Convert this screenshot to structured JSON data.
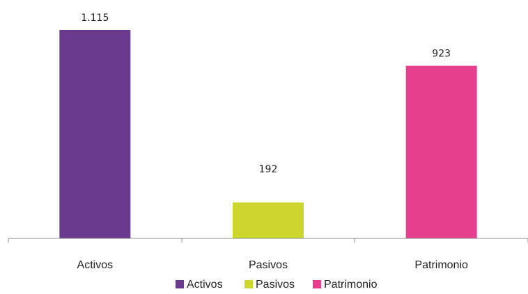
{
  "chart_data": {
    "type": "bar",
    "categories": [
      "Activos",
      "Pasivos",
      "Patrimonio"
    ],
    "values": [
      1115,
      192,
      923
    ],
    "value_labels": [
      "1.115",
      "192",
      "923"
    ],
    "colors": [
      "#6A3A8E",
      "#CDD62C",
      "#E63F8E"
    ],
    "ylim": [
      0,
      1200
    ],
    "grid": false,
    "legend": {
      "position": "bottom",
      "entries": [
        "Activos",
        "Pasivos",
        "Patrimonio"
      ]
    }
  }
}
